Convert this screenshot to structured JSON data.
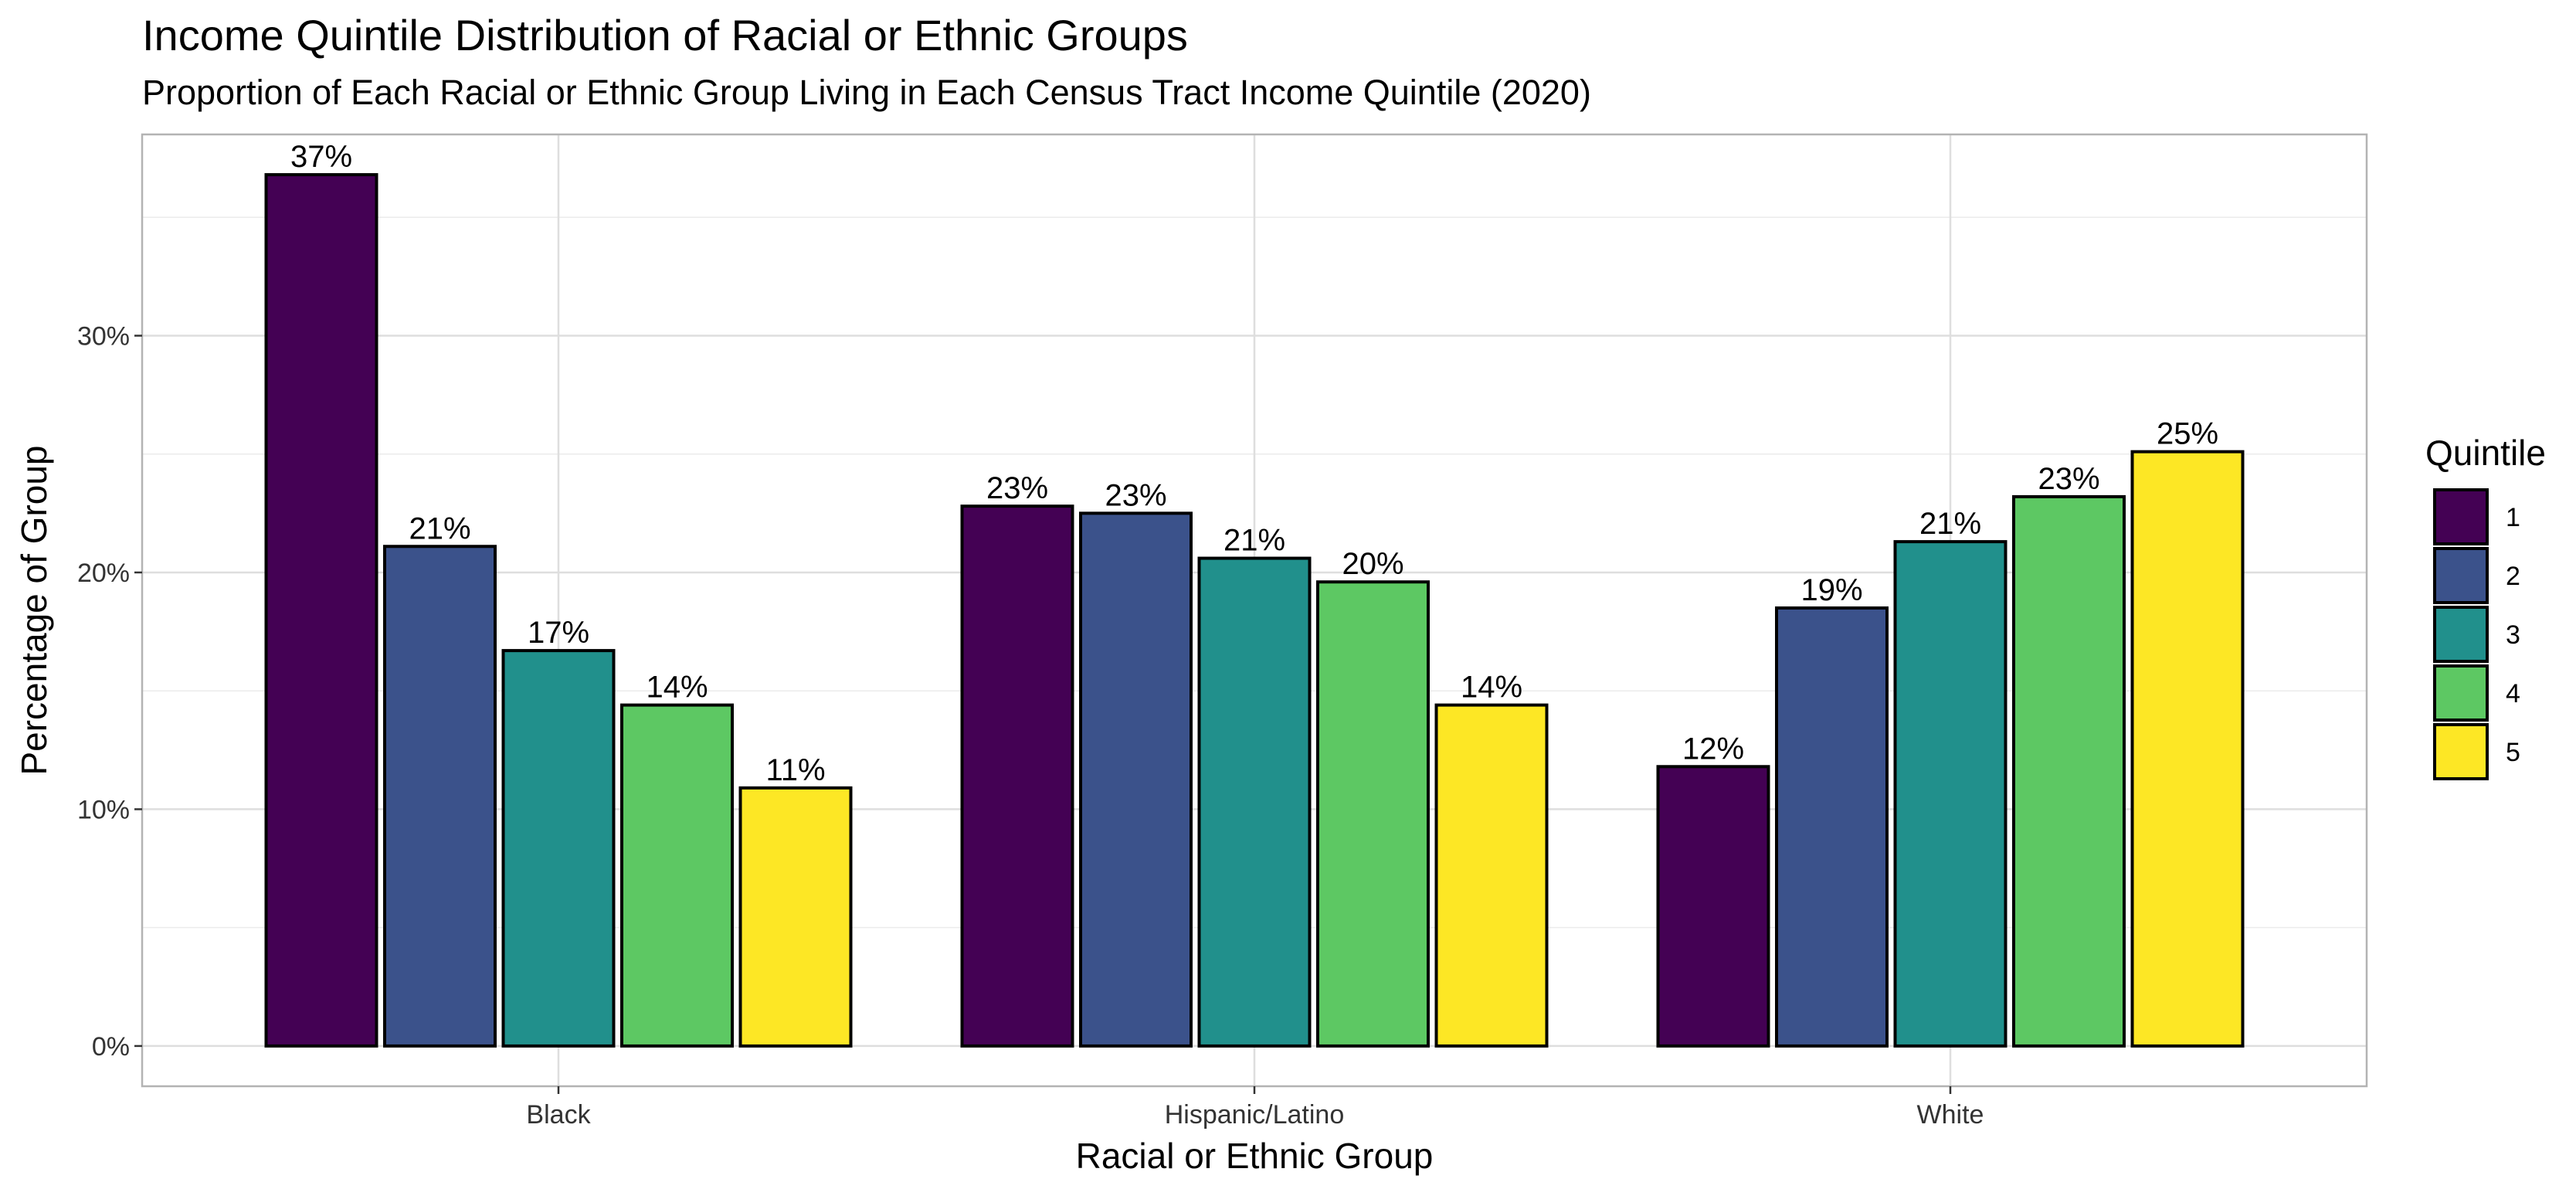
{
  "title": "Income Quintile Distribution of Racial or Ethnic Groups",
  "subtitle": "Proportion of Each Racial or Ethnic Group Living in Each Census Tract Income Quintile (2020)",
  "chart_data": {
    "type": "bar",
    "title": "Income Quintile Distribution of Racial or Ethnic Groups",
    "subtitle": "Proportion of Each Racial or Ethnic Group Living in Each Census Tract Income Quintile (2020)",
    "xlabel": "Racial or Ethnic Group",
    "ylabel": "Percentage of Group",
    "categories": [
      "Black",
      "Hispanic/Latino",
      "White"
    ],
    "ylim": [
      -1.7,
      38.5
    ],
    "yticks": [
      0,
      10,
      20,
      30
    ],
    "ytick_labels": [
      "0%",
      "10%",
      "20%",
      "30%"
    ],
    "grid": true,
    "legend_title": "Quintile",
    "legend_position": "right",
    "series": [
      {
        "name": "1",
        "color": "#440154",
        "values": [
          36.8,
          22.8,
          11.8
        ],
        "labels": [
          "37%",
          "23%",
          "12%"
        ]
      },
      {
        "name": "2",
        "color": "#3B528B",
        "values": [
          21.1,
          22.5,
          18.5
        ],
        "labels": [
          "21%",
          "23%",
          "19%"
        ]
      },
      {
        "name": "3",
        "color": "#21908C",
        "values": [
          16.7,
          20.6,
          21.3
        ],
        "labels": [
          "17%",
          "21%",
          "21%"
        ]
      },
      {
        "name": "4",
        "color": "#5DC863",
        "values": [
          14.4,
          19.6,
          23.2
        ],
        "labels": [
          "14%",
          "20%",
          "23%"
        ]
      },
      {
        "name": "5",
        "color": "#FDE725",
        "values": [
          10.9,
          14.4,
          25.1
        ],
        "labels": [
          "11%",
          "14%",
          "25%"
        ]
      }
    ]
  }
}
